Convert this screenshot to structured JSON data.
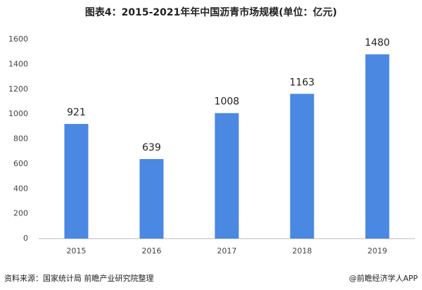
{
  "chart_data": {
    "type": "bar",
    "title": "图表4：2015-2021年年中国沥青市场规模(单位：亿元)",
    "categories": [
      "2015",
      "2016",
      "2017",
      "2018",
      "2019"
    ],
    "values": [
      921,
      639,
      1008,
      1163,
      1480
    ],
    "color": "#4a88e2",
    "ylim": [
      0,
      1600
    ],
    "yticks": [
      0,
      200,
      400,
      600,
      800,
      1000,
      1200,
      1400,
      1600
    ],
    "grid": false,
    "source": "资料来源：国家统计局 前瞻产业研究院整理",
    "credit": "@前瞻经济学人APP"
  }
}
